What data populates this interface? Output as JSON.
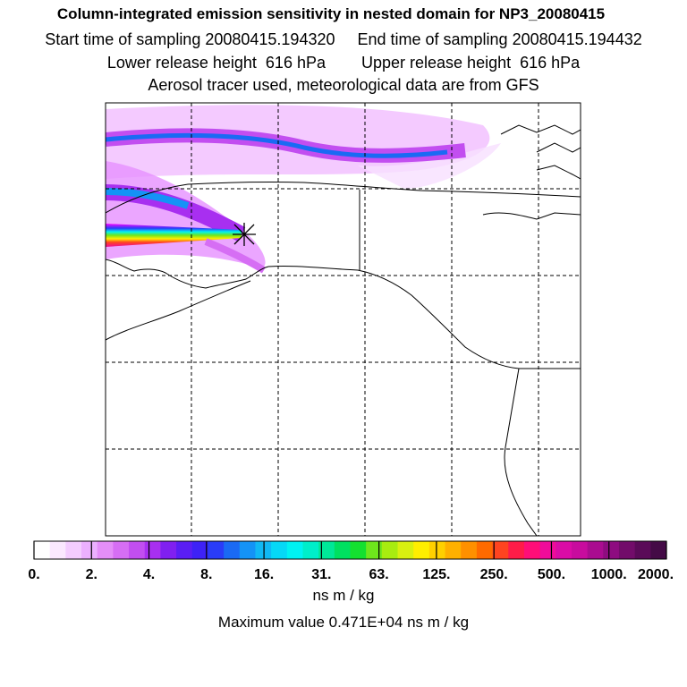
{
  "chart_data": {
    "type": "heatmap",
    "title": "Column-integrated emission sensitivity in nested domain for NP3_20080415",
    "subtitle_lines": [
      "Start time of sampling 20080415.194320     End time of sampling 20080415.194432",
      "Lower release height  616 hPa        Upper release height  616 hPa",
      "Aerosol tracer used, meteorological data are from GFS"
    ],
    "colorbar": {
      "tick_labels": [
        "0.",
        "2.",
        "4.",
        "8.",
        "16.",
        "31.",
        "63.",
        "125.",
        "250.",
        "500.",
        "1000.",
        "2000."
      ],
      "tick_values": [
        0,
        2,
        4,
        8,
        16,
        31,
        63,
        125,
        250,
        500,
        1000,
        2000
      ],
      "units": "ns m / kg"
    },
    "max_value_text": "Maximum value  0.471E+04 ns m / kg",
    "receptor_marker": "star"
  },
  "colors": {
    "colorbar_bins": [
      "#ffffff",
      "#fbe8ff",
      "#f4ccff",
      "#ecb0ff",
      "#e48ef8",
      "#d66ef4",
      "#c24ef0",
      "#a82ff0",
      "#8020f0",
      "#5a1ef4",
      "#3e22f6",
      "#2a3cf8",
      "#1a6af4",
      "#1493f6",
      "#10b8f4",
      "#06d8f6",
      "#00f2f2",
      "#00eeca",
      "#00e898",
      "#00e060",
      "#14e030",
      "#6ee61c",
      "#a8ec10",
      "#d8f010",
      "#ffee00",
      "#ffd000",
      "#ffb000",
      "#ff9000",
      "#ff6a00",
      "#ff4420",
      "#ff1c48",
      "#ff0e78",
      "#f00c9a",
      "#da0ca6",
      "#c80c9e",
      "#aa0c90",
      "#8e0c80",
      "#720c6a",
      "#5a0a58",
      "#440a46"
    ]
  }
}
